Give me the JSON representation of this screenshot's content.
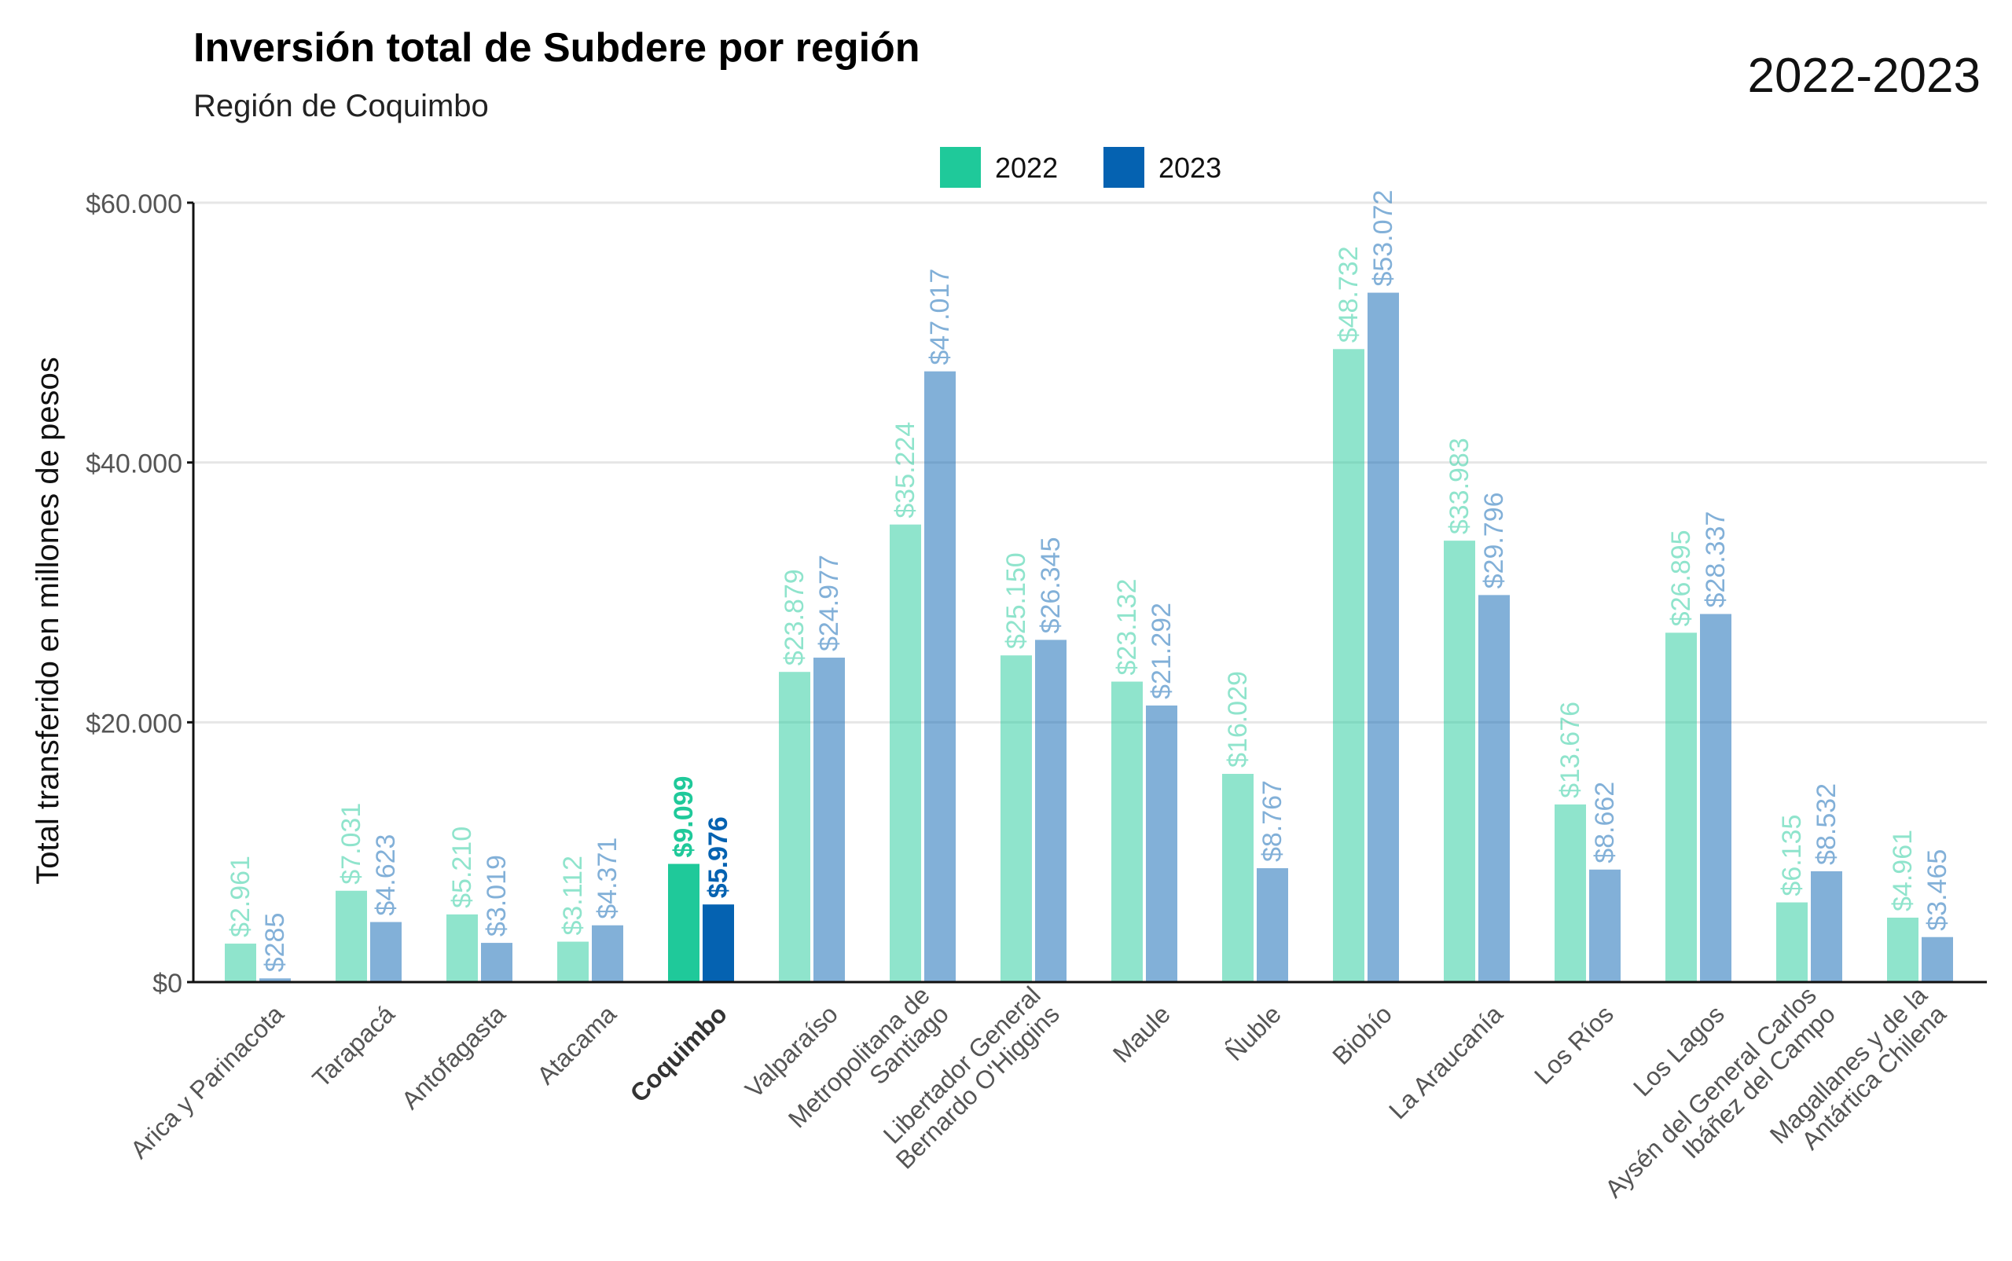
{
  "chart_data": {
    "type": "bar",
    "title": "Inversión total de Subdere por región",
    "subtitle": "Región de Coquimbo",
    "period": "2022-2023",
    "ylabel": "Total transferido en millones de pesos",
    "xlabel": "",
    "ylim": [
      0,
      60000
    ],
    "yticks": [
      0,
      20000,
      40000,
      60000
    ],
    "ytick_labels": [
      "$0",
      "$20.000",
      "$40.000",
      "$60.000"
    ],
    "grid": "horizontal",
    "legend_position": "top-center",
    "highlight_category": "Coquimbo",
    "categories": [
      "Arica y Parinacota",
      "Tarapacá",
      "Antofagasta",
      "Atacama",
      "Coquimbo",
      "Valparaíso",
      "Metropolitana de Santiago",
      "Libertador General Bernardo O'Higgins",
      "Maule",
      "Ñuble",
      "Biobío",
      "La Araucanía",
      "Los Ríos",
      "Los Lagos",
      "Aysén del General Carlos Ibáñez del Campo",
      "Magallanes y de la Antártica Chilena"
    ],
    "category_label_lines": [
      [
        "Arica y Parinacota"
      ],
      [
        "Tarapacá"
      ],
      [
        "Antofagasta"
      ],
      [
        "Atacama"
      ],
      [
        "Coquimbo"
      ],
      [
        "Valparaíso"
      ],
      [
        "Metropolitana de",
        "Santiago"
      ],
      [
        "Libertador General",
        "Bernardo O'Higgins"
      ],
      [
        "Maule"
      ],
      [
        "Ñuble"
      ],
      [
        "Biobío"
      ],
      [
        "La Araucanía"
      ],
      [
        "Los Ríos"
      ],
      [
        "Los Lagos"
      ],
      [
        "Aysén del General Carlos",
        "Ibáñez del Campo"
      ],
      [
        "Magallanes y de la",
        "Antártica Chilena"
      ]
    ],
    "series": [
      {
        "name": "2022",
        "color": "#1fc99a",
        "values": [
          2961,
          7031,
          5210,
          3112,
          9099,
          23879,
          35224,
          25150,
          23132,
          16029,
          48732,
          33983,
          13676,
          26895,
          6135,
          4961
        ],
        "labels": [
          "$2.961",
          "$7.031",
          "$5.210",
          "$3.112",
          "$9.099",
          "$23.879",
          "$35.224",
          "$25.150",
          "$23.132",
          "$16.029",
          "$48.732",
          "$33.983",
          "$13.676",
          "$26.895",
          "$6.135",
          "$4.961"
        ]
      },
      {
        "name": "2023",
        "color": "#0562b1",
        "values": [
          285,
          4623,
          3019,
          4371,
          5976,
          24977,
          47017,
          26345,
          21292,
          8767,
          53072,
          29796,
          8662,
          28337,
          8532,
          3465
        ],
        "labels": [
          "$285",
          "$4.623",
          "$3.019",
          "$4.371",
          "$5.976",
          "$24.977",
          "$47.017",
          "$26.345",
          "$21.292",
          "$8.767",
          "$53.072",
          "$29.796",
          "$8.662",
          "$28.337",
          "$8.532",
          "$3.465"
        ]
      }
    ]
  }
}
